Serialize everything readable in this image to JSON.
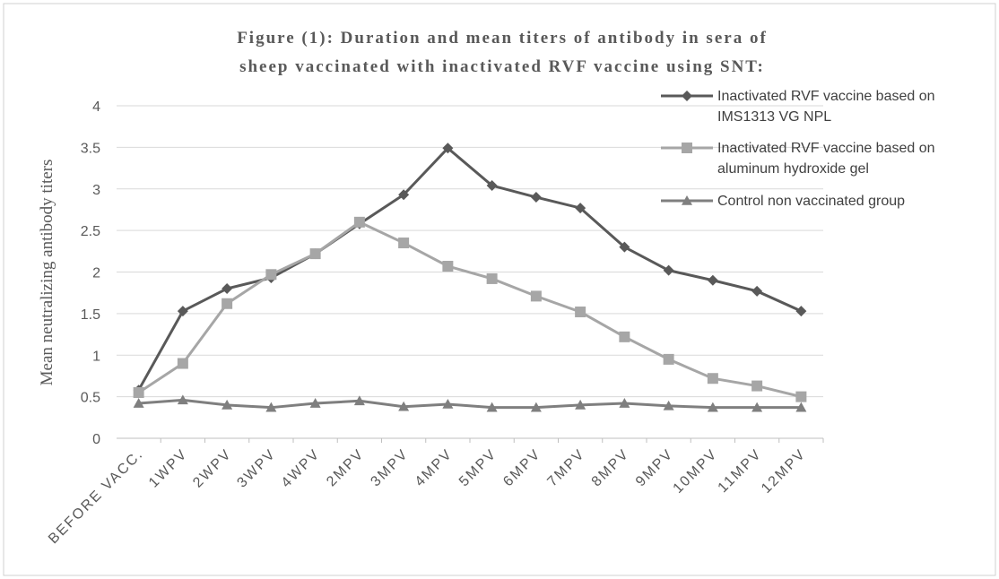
{
  "chart_data": {
    "type": "line",
    "title": [
      "Figure (1): Duration and mean titers of antibody in sera of",
      "sheep vaccinated with inactivated RVF vaccine using SNT:"
    ],
    "y_label": "Mean neutralizing  antibody titers",
    "categories": [
      "BEFORE VACC.",
      "1WPV",
      "2WPV",
      "3WPV",
      "4WPV",
      "2MPV",
      "3MPV",
      "4MPV",
      "5MPV",
      "6MPV",
      "7MPV",
      "8MPV",
      "9MPV",
      "10MPV",
      "11MPV",
      "12MPV"
    ],
    "series": [
      {
        "name": "Inactivated RVF vaccine based on IMS1313 VG NPL",
        "color": "#595959",
        "marker": "diamond",
        "values": [
          0.58,
          1.53,
          1.8,
          1.93,
          2.22,
          2.58,
          2.93,
          3.49,
          3.04,
          2.9,
          2.77,
          2.3,
          2.02,
          1.9,
          1.77,
          1.53
        ]
      },
      {
        "name": "Inactivated RVF vaccine based on aluminum hydroxide gel",
        "color": "#a6a6a6",
        "marker": "square",
        "values": [
          0.55,
          0.9,
          1.62,
          1.97,
          2.22,
          2.6,
          2.35,
          2.07,
          1.92,
          1.71,
          1.52,
          1.22,
          0.95,
          0.72,
          0.63,
          0.5
        ]
      },
      {
        "name": "Control non vaccinated group",
        "color": "#7f7f7f",
        "marker": "triangle",
        "values": [
          0.42,
          0.46,
          0.4,
          0.37,
          0.42,
          0.45,
          0.38,
          0.41,
          0.37,
          0.37,
          0.4,
          0.42,
          0.39,
          0.37,
          0.37,
          0.37
        ]
      }
    ],
    "ylim": [
      0,
      4
    ],
    "yticks": [
      0,
      0.5,
      1,
      1.5,
      2,
      2.5,
      3,
      3.5,
      4
    ],
    "grid": true,
    "legend": "right"
  }
}
